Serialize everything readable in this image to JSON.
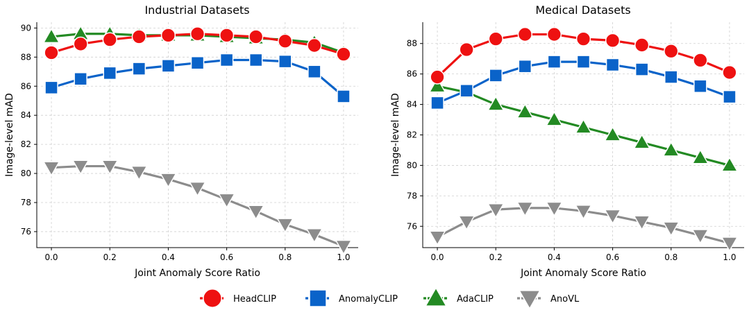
{
  "chart_data": [
    {
      "type": "line",
      "title": "Industrial Datasets",
      "xlabel": "Joint Anomaly Score Ratio",
      "ylabel": "Image-level mAD",
      "xlim": [
        -0.05,
        1.05
      ],
      "ylim": [
        74.9,
        90.4
      ],
      "xticks": [
        "0.0",
        "0.2",
        "0.4",
        "0.6",
        "0.8",
        "1.0"
      ],
      "yticks": [
        "76",
        "78",
        "80",
        "82",
        "84",
        "86",
        "88",
        "90"
      ],
      "grid": true,
      "x": [
        0.0,
        0.1,
        0.2,
        0.3,
        0.4,
        0.5,
        0.6,
        0.7,
        0.8,
        0.9,
        1.0
      ],
      "series": [
        {
          "name": "AnoVL",
          "values": [
            80.4,
            80.5,
            80.5,
            80.1,
            79.6,
            79.0,
            78.2,
            77.4,
            76.5,
            75.8,
            75.0
          ]
        },
        {
          "name": "AnomalyCLIP",
          "values": [
            85.9,
            86.5,
            86.9,
            87.2,
            87.4,
            87.6,
            87.8,
            87.8,
            87.7,
            87.0,
            85.3
          ]
        },
        {
          "name": "AdaCLIP",
          "values": [
            89.4,
            89.6,
            89.6,
            89.5,
            89.5,
            89.5,
            89.4,
            89.3,
            89.2,
            89.0,
            88.3
          ]
        },
        {
          "name": "HeadCLIP",
          "values": [
            88.3,
            88.9,
            89.2,
            89.4,
            89.5,
            89.6,
            89.5,
            89.4,
            89.1,
            88.8,
            88.2
          ]
        }
      ]
    },
    {
      "type": "line",
      "title": "Medical Datasets",
      "xlabel": "Joint Anomaly Score Ratio",
      "ylabel": "Image-level mAD",
      "xlim": [
        -0.05,
        1.05
      ],
      "ylim": [
        74.6,
        89.4
      ],
      "xticks": [
        "0.0",
        "0.2",
        "0.4",
        "0.6",
        "0.8",
        "1.0"
      ],
      "yticks": [
        "76",
        "78",
        "80",
        "82",
        "84",
        "86",
        "88"
      ],
      "grid": true,
      "x": [
        0.0,
        0.1,
        0.2,
        0.3,
        0.4,
        0.5,
        0.6,
        0.7,
        0.8,
        0.9,
        1.0
      ],
      "series": [
        {
          "name": "AnoVL",
          "values": [
            75.3,
            76.3,
            77.1,
            77.2,
            77.2,
            77.0,
            76.7,
            76.3,
            75.9,
            75.4,
            74.9
          ]
        },
        {
          "name": "AdaCLIP",
          "values": [
            85.2,
            84.8,
            84.0,
            83.5,
            83.0,
            82.5,
            82.0,
            81.5,
            81.0,
            80.5,
            80.0
          ]
        },
        {
          "name": "AnomalyCLIP",
          "values": [
            84.1,
            84.9,
            85.9,
            86.5,
            86.8,
            86.8,
            86.6,
            86.3,
            85.8,
            85.2,
            84.5
          ]
        },
        {
          "name": "HeadCLIP",
          "values": [
            85.8,
            87.6,
            88.3,
            88.6,
            88.6,
            88.3,
            88.2,
            87.9,
            87.5,
            86.9,
            86.1
          ]
        }
      ]
    }
  ],
  "legend": {
    "position": "bottom",
    "entries": [
      {
        "name": "HeadCLIP",
        "color": "#ee1111",
        "marker": "circle"
      },
      {
        "name": "AnomalyCLIP",
        "color": "#0a63c9",
        "marker": "square"
      },
      {
        "name": "AdaCLIP",
        "color": "#238a23",
        "marker": "triangle-up"
      },
      {
        "name": "AnoVL",
        "color": "#8c8c8c",
        "marker": "triangle-down"
      }
    ]
  }
}
